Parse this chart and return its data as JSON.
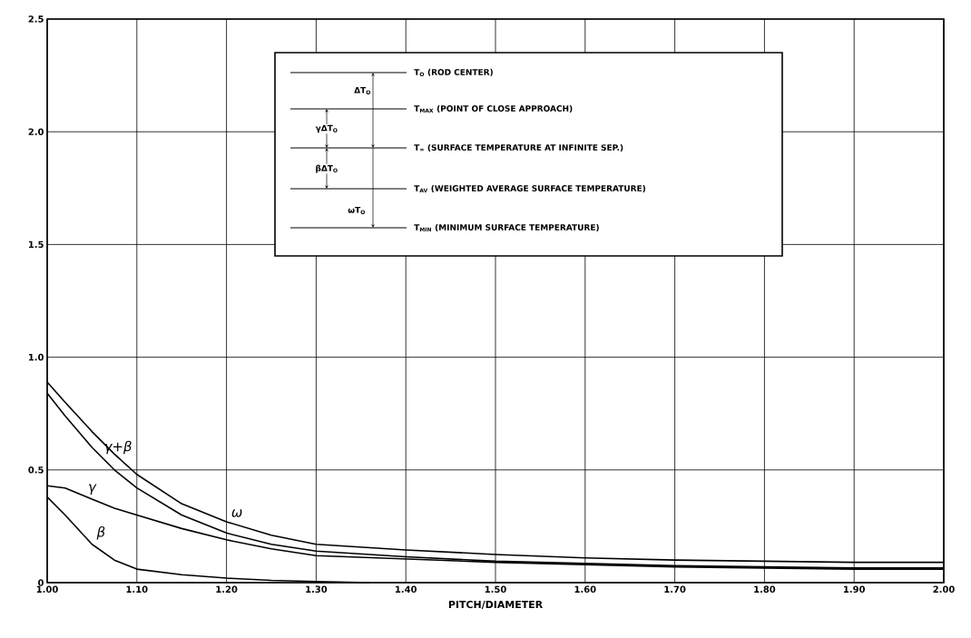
{
  "chart_data": {
    "type": "line",
    "xlabel": "PITCH/DIAMETER",
    "xlim": [
      1.0,
      2.0
    ],
    "ylim": [
      0,
      2.5
    ],
    "xticks": [
      {
        "value": 1.0,
        "label": "1.00"
      },
      {
        "value": 1.1,
        "label": "1.10"
      },
      {
        "value": 1.2,
        "label": "1.20"
      },
      {
        "value": 1.3,
        "label": "1.30"
      },
      {
        "value": 1.4,
        "label": "1.40"
      },
      {
        "value": 1.5,
        "label": "1.50"
      },
      {
        "value": 1.6,
        "label": "1.60"
      },
      {
        "value": 1.7,
        "label": "1.70"
      },
      {
        "value": 1.8,
        "label": "1.80"
      },
      {
        "value": 1.9,
        "label": "1.90"
      },
      {
        "value": 2.0,
        "label": "2.00"
      }
    ],
    "yticks": [
      0,
      0.5,
      {
        "value": 1.0,
        "label": "1.0"
      },
      {
        "value": 1.5,
        "label": "1.5"
      },
      {
        "value": 2.0,
        "label": "2.0"
      },
      {
        "value": 2.5,
        "label": "2.5"
      }
    ],
    "grid": true,
    "x": [
      1.0,
      1.02,
      1.05,
      1.075,
      1.1,
      1.15,
      1.2,
      1.25,
      1.3,
      1.4,
      1.5,
      1.6,
      1.7,
      1.8,
      1.9,
      2.0
    ],
    "series": [
      {
        "name": "ω",
        "color": "#000000",
        "values": [
          0.89,
          0.8,
          0.67,
          0.57,
          0.48,
          0.35,
          0.27,
          0.21,
          0.17,
          0.145,
          0.125,
          0.11,
          0.1,
          0.095,
          0.09,
          0.09
        ]
      },
      {
        "name": "γ+β",
        "color": "#000000",
        "values": [
          0.84,
          0.74,
          0.6,
          0.5,
          0.42,
          0.3,
          0.22,
          0.17,
          0.14,
          0.115,
          0.095,
          0.085,
          0.075,
          0.07,
          0.065,
          0.065
        ]
      },
      {
        "name": "γ",
        "color": "#000000",
        "values": [
          0.43,
          0.42,
          0.37,
          0.33,
          0.3,
          0.24,
          0.19,
          0.15,
          0.12,
          0.105,
          0.09,
          0.08,
          0.07,
          0.065,
          0.06,
          0.06
        ]
      },
      {
        "name": "β",
        "color": "#000000",
        "x": [
          1.0,
          1.02,
          1.05,
          1.075,
          1.1,
          1.15,
          1.2,
          1.25,
          1.3,
          1.36
        ],
        "values": [
          0.38,
          0.3,
          0.17,
          0.1,
          0.06,
          0.035,
          0.02,
          0.01,
          0.005,
          0
        ]
      }
    ],
    "annotations": [
      "T$_{O}$ (ROD CENTER)",
      "T$_{MAX}$ (POINT OF CLOSE APPROACH)",
      "T$_{∞}$ (SURFACE TEMPERATURE AT INFINITE SEP.)",
      "T$_{AV}$ (WEIGHTED AVERAGE SURFACE TEMPERATURE)",
      "T$_{MIN}$ (MINIMUM SURFACE TEMPERATURE)",
      "ΔT$_{O}$",
      "γΔT$_{O}$",
      "βΔT$_{O}$",
      "ωT$_{O}$"
    ]
  }
}
